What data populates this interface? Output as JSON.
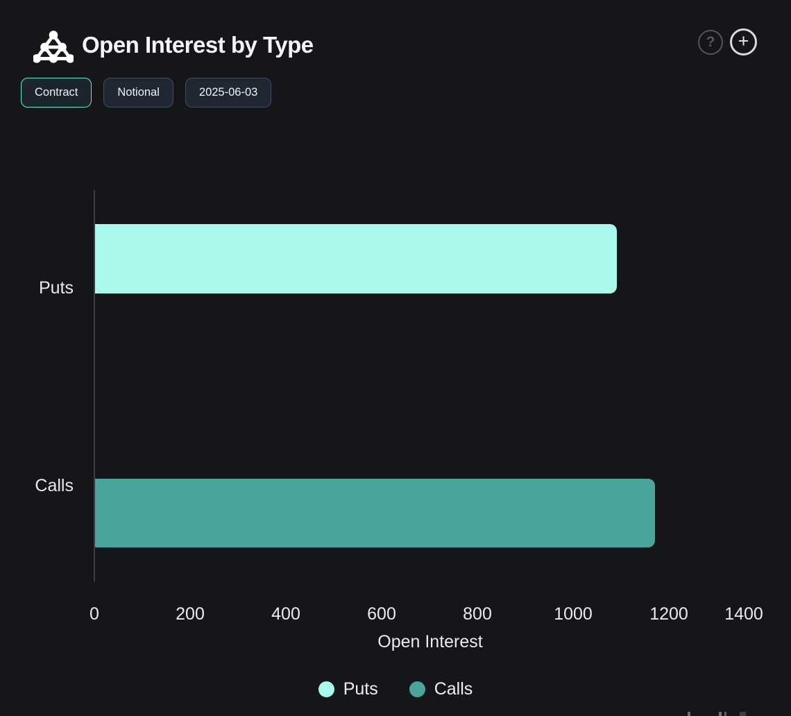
{
  "header": {
    "title": "Open Interest by Type",
    "help_label": "?",
    "add_label": "+"
  },
  "toolbar": {
    "buttons": [
      {
        "label": "Contract",
        "active": true
      },
      {
        "label": "Notional",
        "active": false
      },
      {
        "label": "2025-06-03",
        "active": false
      }
    ]
  },
  "chart_data": {
    "type": "bar",
    "orientation": "horizontal",
    "title": "Open Interest by Type",
    "categories": [
      "Puts",
      "Calls"
    ],
    "series": [
      {
        "name": "Puts",
        "value": 1090,
        "color": "#abf9ec"
      },
      {
        "name": "Calls",
        "value": 1170,
        "color": "#4aa49c"
      }
    ],
    "xlabel": "Open Interest",
    "x_ticks": [
      "0",
      "200",
      "400",
      "600",
      "800",
      "1000",
      "1200",
      "1400"
    ],
    "xlim": [
      0,
      1400
    ],
    "grid": false,
    "legend_position": "bottom"
  },
  "colors": {
    "background": "#15161a",
    "text": "#f2f4f6",
    "puts": "#abf9ec",
    "calls": "#4aa49c",
    "active_button_border": "#6ce9d3",
    "button_border": "#414c5e",
    "button_bg": "#1f2733",
    "axis_line": "#3a3e44"
  }
}
